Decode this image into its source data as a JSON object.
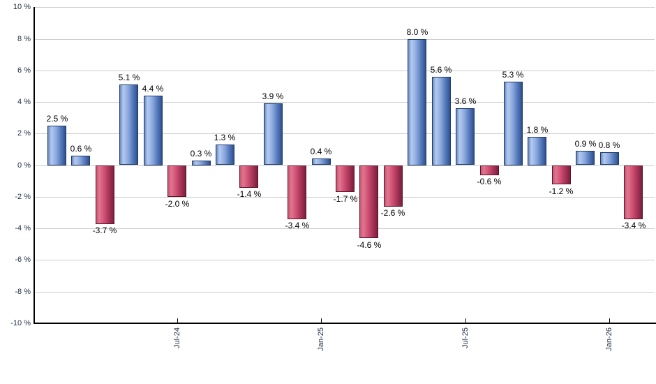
{
  "chart_data": {
    "type": "bar",
    "title": "",
    "xlabel": "",
    "ylabel": "",
    "values": [
      2.5,
      0.6,
      -3.7,
      5.1,
      4.4,
      -2.0,
      0.3,
      1.3,
      -1.4,
      3.9,
      -3.4,
      0.4,
      -1.7,
      -4.6,
      -2.6,
      8.0,
      5.6,
      3.6,
      -0.6,
      5.3,
      1.8,
      -1.2,
      0.9,
      0.8,
      -3.4
    ],
    "bar_labels": [
      "2.5 %",
      "0.6 %",
      "-3.7 %",
      "5.1 %",
      "4.4 %",
      "-2.0 %",
      "0.3 %",
      "1.3 %",
      "-1.4 %",
      "3.9 %",
      "-3.4 %",
      "0.4 %",
      "-1.7 %",
      "-4.6 %",
      "-2.6 %",
      "8.0 %",
      "5.6 %",
      "3.6 %",
      "-0.6 %",
      "5.3 %",
      "1.8 %",
      "-1.2 %",
      "0.9 %",
      "0.8 %",
      "-3.4 %"
    ],
    "x_ticks": [
      {
        "bar_index": 5,
        "label": "Jul-24"
      },
      {
        "bar_index": 11,
        "label": "Jan-25"
      },
      {
        "bar_index": 17,
        "label": "Jul-25"
      },
      {
        "bar_index": 23,
        "label": "Jan-26"
      }
    ],
    "y_ticks": [
      {
        "value": 10,
        "label": "10 %"
      },
      {
        "value": 8,
        "label": "8 %"
      },
      {
        "value": 6,
        "label": "6 %"
      },
      {
        "value": 4,
        "label": "4 %"
      },
      {
        "value": 2,
        "label": "2 %"
      },
      {
        "value": 0,
        "label": "0 %"
      },
      {
        "value": -2,
        "label": "-2 %"
      },
      {
        "value": -4,
        "label": "-4 %"
      },
      {
        "value": -6,
        "label": "-6 %"
      },
      {
        "value": -8,
        "label": "-8 %"
      },
      {
        "value": -10,
        "label": "-10 %"
      }
    ],
    "ylim": [
      -10,
      10
    ],
    "grid": true,
    "legend_position": "none",
    "colors": {
      "positive_bar_highlight": "#b3caf1",
      "positive_bar_dark": "#2d4f8e",
      "positive_bar_border": "#203a66",
      "negative_bar_highlight": "#e2758f",
      "negative_bar_dark": "#7c1f3c",
      "negative_bar_border": "#5c142c",
      "gridline": "#cccccc",
      "axis_line": "#000000",
      "bar_label_text": "#000000",
      "tick_label_text": "#1f2d44",
      "background": "#ffffff"
    }
  }
}
